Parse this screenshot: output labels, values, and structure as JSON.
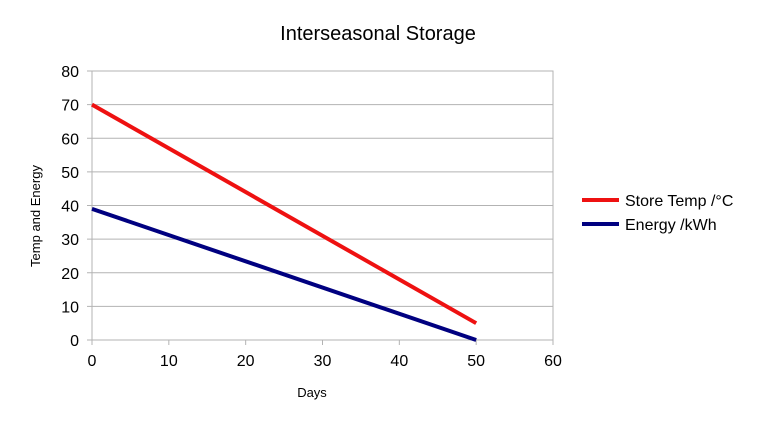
{
  "chart_data": {
    "type": "line",
    "title": "Interseasonal Storage",
    "xlabel": "Days",
    "ylabel": "Temp and Energy",
    "xlim": [
      0,
      60
    ],
    "ylim": [
      0,
      80
    ],
    "x_ticks": [
      0,
      10,
      20,
      30,
      40,
      50,
      60
    ],
    "y_ticks": [
      0,
      10,
      20,
      30,
      40,
      50,
      60,
      70,
      80
    ],
    "grid": "horizontal",
    "legend_position": "right",
    "series": [
      {
        "name": "Store Temp /°C",
        "color": "#ee1111",
        "x": [
          0,
          50
        ],
        "y": [
          70,
          5
        ]
      },
      {
        "name": "Energy /kWh",
        "color": "#000080",
        "x": [
          0,
          50
        ],
        "y": [
          39,
          0
        ]
      }
    ]
  }
}
